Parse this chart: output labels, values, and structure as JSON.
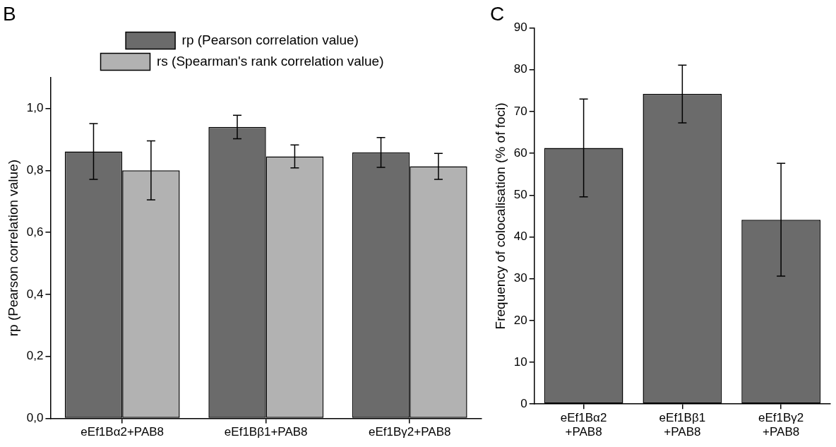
{
  "chart_data": [
    {
      "type": "bar",
      "title": "B",
      "ylabel": "rp (Pearson correlation value)",
      "categories": [
        "eEf1Bα2+PAB8",
        "eEf1Bβ1+PAB8",
        "eEf1Bγ2+PAB8"
      ],
      "series": [
        {
          "name": "rp (Pearson correlation value)",
          "color": "#6b6b6b",
          "values": [
            0.861,
            0.94,
            0.858
          ],
          "errors": [
            0.09,
            0.038,
            0.048
          ]
        },
        {
          "name": "rs (Spearman's rank correlation value)",
          "color": "#b2b2b2",
          "values": [
            0.8,
            0.845,
            0.813
          ],
          "errors": [
            0.095,
            0.037,
            0.042
          ]
        }
      ],
      "ylim": [
        0,
        1.1
      ],
      "yticks": [
        {
          "value": 0,
          "label": "0,0"
        },
        {
          "value": 0.2,
          "label": "0,2"
        },
        {
          "value": 0.4,
          "label": "0,4"
        },
        {
          "value": 0.6,
          "label": "0,6"
        },
        {
          "value": 0.8,
          "label": "0,8"
        },
        {
          "value": 1,
          "label": "1,0"
        }
      ],
      "grid": false,
      "legend": "top"
    },
    {
      "type": "bar",
      "title": "C",
      "ylabel": "Frequency of colocalisation (% of foci)",
      "categories": [
        "eEf1Bα2\n+PAB8",
        "eEf1Bβ1\n+PAB8",
        "eEf1Bγ2\n+PAB8"
      ],
      "series": [
        {
          "color": "#6b6b6b",
          "values": [
            61.3,
            74.2,
            44.1
          ],
          "errors": [
            11.7,
            6.9,
            13.5
          ]
        }
      ],
      "ylim": [
        0,
        90
      ],
      "yticks": [
        0,
        10,
        20,
        30,
        40,
        50,
        60,
        70,
        80,
        90
      ],
      "grid": false,
      "legend": false
    }
  ]
}
